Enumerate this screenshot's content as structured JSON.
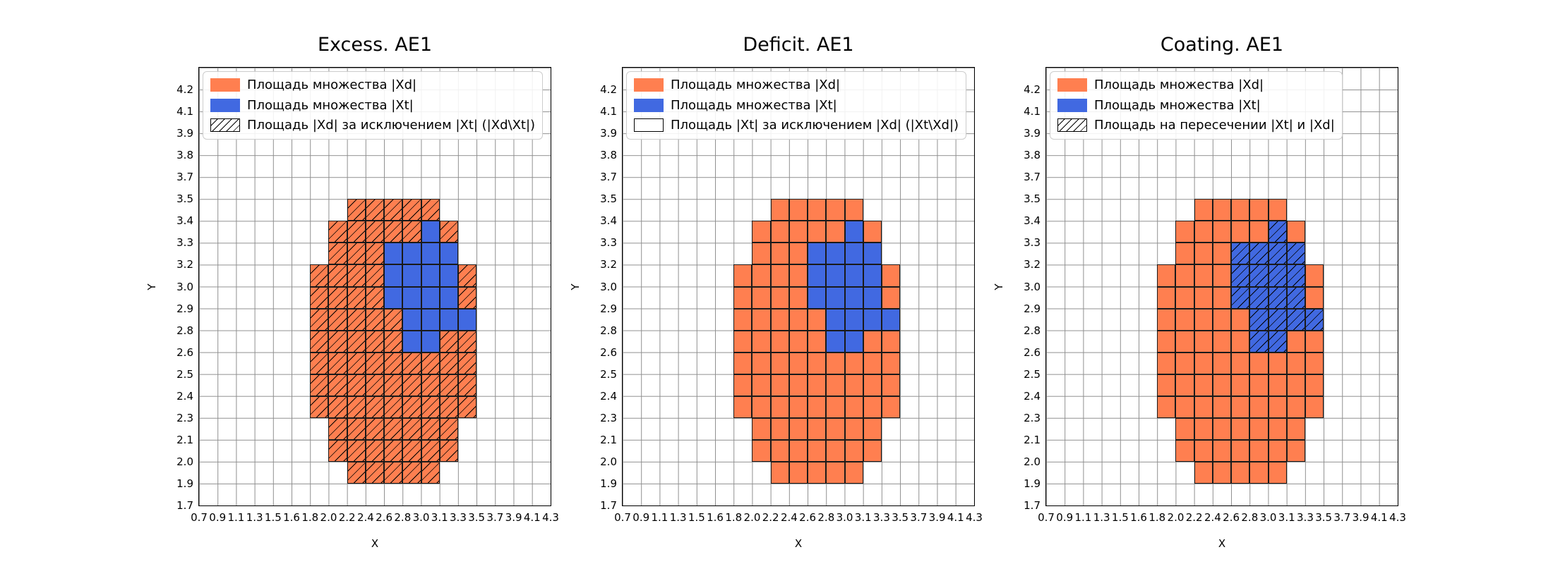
{
  "figure": {
    "background": "#ffffff",
    "colors": {
      "xd_fill": "#FF7F50",
      "xt_fill": "#4169E1",
      "grid_line": "#8f8f8f",
      "cell_edge": "#1a1a1a",
      "hatch_line": "#000000",
      "legend_border": "#cccccc",
      "text": "#000000"
    },
    "axis": {
      "xlabel": "X",
      "ylabel": "Y",
      "x_tick_labels": [
        "0.7",
        "0.9",
        "1.1",
        "1.3",
        "1.5",
        "1.6",
        "1.8",
        "2.0",
        "2.2",
        "2.4",
        "2.6",
        "2.8",
        "3.0",
        "3.1",
        "3.3",
        "3.5",
        "3.7",
        "3.9",
        "4.1",
        "4.3"
      ],
      "y_tick_labels": [
        "1.7",
        "1.9",
        "2.0",
        "2.1",
        "2.3",
        "2.4",
        "2.5",
        "2.6",
        "2.8",
        "2.9",
        "3.0",
        "3.2",
        "3.3",
        "3.4",
        "3.5",
        "3.7",
        "3.8",
        "3.9",
        "4.1",
        "4.2"
      ]
    }
  },
  "subplots": [
    {
      "title": "Excess. AE1",
      "hatch_on": "xd",
      "legend": [
        {
          "swatch": "xd",
          "label": "Площадь множества |Xd|"
        },
        {
          "swatch": "xt",
          "label": "Площадь множества  |Xt|"
        },
        {
          "swatch": "hatch",
          "label": "Площадь |Xd| за исключением |Xt| (|Xd\\Xt|)"
        }
      ]
    },
    {
      "title": "Deficit. AE1",
      "hatch_on": "none",
      "legend": [
        {
          "swatch": "xd",
          "label": "Площадь множества |Xd|"
        },
        {
          "swatch": "xt",
          "label": "Площадь множества  |Xt|"
        },
        {
          "swatch": "plain",
          "label": "Площадь |Xt| за исключением |Xd| (|Xt\\Xd|)"
        }
      ]
    },
    {
      "title": "Coating. AE1",
      "hatch_on": "xt",
      "legend": [
        {
          "swatch": "xd",
          "label": "Площадь множества |Xd|"
        },
        {
          "swatch": "xt",
          "label": "Площадь множества  |Xt|"
        },
        {
          "swatch": "hatch",
          "label": "Площадь на пересечении |Xt| и |Xd|"
        }
      ]
    }
  ],
  "chart_data": [
    {
      "type": "heatmap",
      "title": "Excess. AE1",
      "xlabel": "X",
      "ylabel": "Y",
      "grid": true,
      "legend_position": "upper left",
      "x_boundaries": [
        0.7,
        0.9,
        1.1,
        1.3,
        1.5,
        1.6,
        1.8,
        2.0,
        2.2,
        2.4,
        2.6,
        2.8,
        3.0,
        3.1,
        3.3,
        3.5,
        3.7,
        3.9,
        4.1,
        4.3
      ],
      "y_boundaries": [
        1.7,
        1.9,
        2.0,
        2.1,
        2.3,
        2.4,
        2.5,
        2.6,
        2.8,
        2.9,
        3.0,
        3.2,
        3.3,
        3.4,
        3.5,
        3.7,
        3.8,
        3.9,
        4.1,
        4.2
      ],
      "hatched_region": "xd",
      "series": [
        {
          "name": "Площадь множества |Xd|",
          "color": "#FF7F50",
          "cells_row_col_spans": [
            [
              1,
              8,
              12
            ],
            [
              2,
              7,
              13
            ],
            [
              3,
              7,
              13
            ],
            [
              4,
              6,
              14
            ],
            [
              5,
              6,
              14
            ],
            [
              6,
              6,
              14
            ],
            [
              7,
              6,
              14
            ],
            [
              8,
              6,
              14
            ],
            [
              9,
              6,
              14
            ],
            [
              10,
              6,
              14
            ],
            [
              11,
              7,
              13
            ],
            [
              12,
              7,
              13
            ],
            [
              13,
              8,
              12
            ]
          ]
        },
        {
          "name": "Площадь множества  |Xt|",
          "color": "#4169E1",
          "cells_row_col_spans": [
            [
              7,
              11,
              12
            ],
            [
              8,
              11,
              14
            ],
            [
              9,
              10,
              13
            ],
            [
              10,
              10,
              13
            ],
            [
              11,
              10,
              13
            ],
            [
              12,
              12,
              12
            ]
          ]
        }
      ]
    },
    {
      "type": "heatmap",
      "title": "Deficit. AE1",
      "xlabel": "X",
      "ylabel": "Y",
      "grid": true,
      "legend_position": "upper left",
      "x_boundaries": [
        0.7,
        0.9,
        1.1,
        1.3,
        1.5,
        1.6,
        1.8,
        2.0,
        2.2,
        2.4,
        2.6,
        2.8,
        3.0,
        3.1,
        3.3,
        3.5,
        3.7,
        3.9,
        4.1,
        4.3
      ],
      "y_boundaries": [
        1.7,
        1.9,
        2.0,
        2.1,
        2.3,
        2.4,
        2.5,
        2.6,
        2.8,
        2.9,
        3.0,
        3.2,
        3.3,
        3.4,
        3.5,
        3.7,
        3.8,
        3.9,
        4.1,
        4.2
      ],
      "hatched_region": "none",
      "series": [
        {
          "name": "Площадь множества |Xd|",
          "color": "#FF7F50",
          "cells_row_col_spans": [
            [
              1,
              8,
              12
            ],
            [
              2,
              7,
              13
            ],
            [
              3,
              7,
              13
            ],
            [
              4,
              6,
              14
            ],
            [
              5,
              6,
              14
            ],
            [
              6,
              6,
              14
            ],
            [
              7,
              6,
              14
            ],
            [
              8,
              6,
              14
            ],
            [
              9,
              6,
              14
            ],
            [
              10,
              6,
              14
            ],
            [
              11,
              7,
              13
            ],
            [
              12,
              7,
              13
            ],
            [
              13,
              8,
              12
            ]
          ]
        },
        {
          "name": "Площадь множества  |Xt|",
          "color": "#4169E1",
          "cells_row_col_spans": [
            [
              7,
              11,
              12
            ],
            [
              8,
              11,
              14
            ],
            [
              9,
              10,
              13
            ],
            [
              10,
              10,
              13
            ],
            [
              11,
              10,
              13
            ],
            [
              12,
              12,
              12
            ]
          ]
        }
      ]
    },
    {
      "type": "heatmap",
      "title": "Coating. AE1",
      "xlabel": "X",
      "ylabel": "Y",
      "grid": true,
      "legend_position": "upper left",
      "x_boundaries": [
        0.7,
        0.9,
        1.1,
        1.3,
        1.5,
        1.6,
        1.8,
        2.0,
        2.2,
        2.4,
        2.6,
        2.8,
        3.0,
        3.1,
        3.3,
        3.5,
        3.7,
        3.9,
        4.1,
        4.3
      ],
      "y_boundaries": [
        1.7,
        1.9,
        2.0,
        2.1,
        2.3,
        2.4,
        2.5,
        2.6,
        2.8,
        2.9,
        3.0,
        3.2,
        3.3,
        3.4,
        3.5,
        3.7,
        3.8,
        3.9,
        4.1,
        4.2
      ],
      "hatched_region": "xt",
      "series": [
        {
          "name": "Площадь множества |Xd|",
          "color": "#FF7F50",
          "cells_row_col_spans": [
            [
              1,
              8,
              12
            ],
            [
              2,
              7,
              13
            ],
            [
              3,
              7,
              13
            ],
            [
              4,
              6,
              14
            ],
            [
              5,
              6,
              14
            ],
            [
              6,
              6,
              14
            ],
            [
              7,
              6,
              14
            ],
            [
              8,
              6,
              14
            ],
            [
              9,
              6,
              14
            ],
            [
              10,
              6,
              14
            ],
            [
              11,
              7,
              13
            ],
            [
              12,
              7,
              13
            ],
            [
              13,
              8,
              12
            ]
          ]
        },
        {
          "name": "Площадь множества  |Xt|",
          "color": "#4169E1",
          "cells_row_col_spans": [
            [
              7,
              11,
              12
            ],
            [
              8,
              11,
              14
            ],
            [
              9,
              10,
              13
            ],
            [
              10,
              10,
              13
            ],
            [
              11,
              10,
              13
            ],
            [
              12,
              12,
              12
            ]
          ]
        }
      ]
    }
  ]
}
